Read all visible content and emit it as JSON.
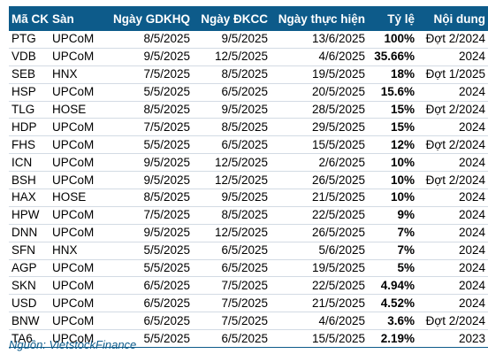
{
  "table": {
    "headers": [
      "Mã CK",
      "Sàn",
      "Ngày GDKHQ",
      "Ngày ĐKCC",
      "Ngày thực hiện",
      "Tỷ lệ",
      "Nội dung"
    ],
    "rows": [
      [
        "PTG",
        "UPCoM",
        "8/5/2025",
        "9/5/2025",
        "13/6/2025",
        "100%",
        "Đợt 2/2024"
      ],
      [
        "VDB",
        "UPCoM",
        "9/5/2025",
        "12/5/2025",
        "4/6/2025",
        "35.66%",
        "2024"
      ],
      [
        "SEB",
        "HNX",
        "7/5/2025",
        "8/5/2025",
        "19/5/2025",
        "18%",
        "Đợt 1/2025"
      ],
      [
        "HSP",
        "UPCoM",
        "5/5/2025",
        "6/5/2025",
        "20/5/2025",
        "15.6%",
        "2024"
      ],
      [
        "TLG",
        "HOSE",
        "8/5/2025",
        "9/5/2025",
        "28/5/2025",
        "15%",
        "Đợt 2/2024"
      ],
      [
        "HDP",
        "UPCoM",
        "7/5/2025",
        "8/5/2025",
        "29/5/2025",
        "15%",
        "2024"
      ],
      [
        "FHS",
        "UPCoM",
        "5/5/2025",
        "6/5/2025",
        "15/5/2025",
        "12%",
        "Đợt 2/2024"
      ],
      [
        "ICN",
        "UPCoM",
        "9/5/2025",
        "12/5/2025",
        "2/6/2025",
        "10%",
        "2024"
      ],
      [
        "BSH",
        "UPCoM",
        "9/5/2025",
        "12/5/2025",
        "26/5/2025",
        "10%",
        "Đợt 2/2024"
      ],
      [
        "HAX",
        "HOSE",
        "8/5/2025",
        "9/5/2025",
        "21/5/2025",
        "10%",
        "2024"
      ],
      [
        "HPW",
        "UPCoM",
        "7/5/2025",
        "8/5/2025",
        "22/5/2025",
        "9%",
        "2024"
      ],
      [
        "DNN",
        "UPCoM",
        "9/5/2025",
        "12/5/2025",
        "26/5/2025",
        "7%",
        "2024"
      ],
      [
        "SFN",
        "HNX",
        "5/5/2025",
        "6/5/2025",
        "5/6/2025",
        "7%",
        "2024"
      ],
      [
        "AGP",
        "UPCoM",
        "5/5/2025",
        "6/5/2025",
        "19/5/2025",
        "5%",
        "2024"
      ],
      [
        "SKN",
        "UPCoM",
        "6/5/2025",
        "7/5/2025",
        "22/5/2025",
        "4.94%",
        "2024"
      ],
      [
        "USD",
        "UPCoM",
        "6/5/2025",
        "7/5/2025",
        "21/5/2025",
        "4.52%",
        "2024"
      ],
      [
        "BNW",
        "UPCoM",
        "6/5/2025",
        "7/5/2025",
        "4/6/2025",
        "3.6%",
        "Đợt 2/2024"
      ],
      [
        "TA6",
        "UPCoM",
        "5/5/2025",
        "6/5/2025",
        "15/5/2025",
        "2.19%",
        "2023"
      ]
    ]
  },
  "source": "Nguồn: VietstockFinance",
  "colors": {
    "header_bg": "#0d5b8a",
    "header_text": "#ffffff",
    "row_divider": "#d3dbe4"
  }
}
